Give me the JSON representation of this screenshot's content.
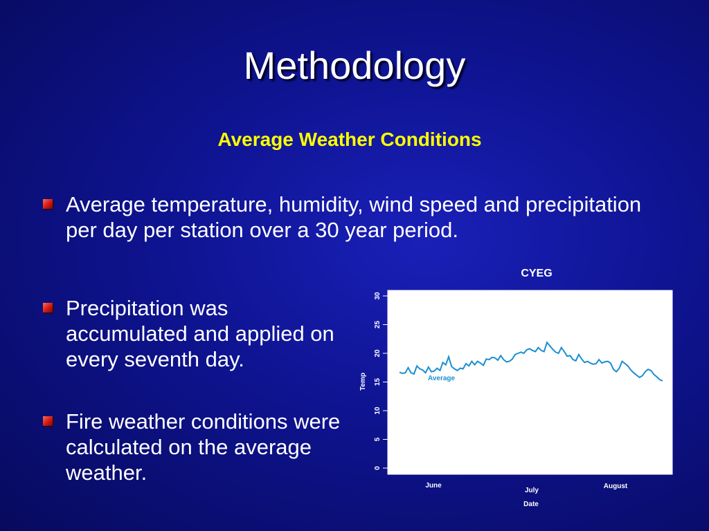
{
  "slide": {
    "title": "Methodology",
    "subtitle": "Average Weather Conditions",
    "bullets": [
      "Average temperature, humidity, wind speed and precipitation per day per station over a 30 year period.",
      "Precipitation was accumulated and applied on every seventh day.",
      "Fire weather conditions were calculated on the average weather."
    ]
  },
  "colors": {
    "background": "#0e138f",
    "title": "#ffffff",
    "subtitle": "#ffff00",
    "bullet_marker": "#d01a10",
    "line": "#1a8fd0"
  },
  "chart_data": {
    "type": "line",
    "title": "CYEG",
    "xlabel": "Date",
    "ylabel": "Temp",
    "ylim": [
      0,
      30
    ],
    "yticks": [
      "0",
      "5",
      "10",
      "15",
      "20",
      "25",
      "30"
    ],
    "xtick_labels": [
      "June",
      "July",
      "August"
    ],
    "x_range": [
      1,
      92
    ],
    "grid": false,
    "series": [
      {
        "name": "Average",
        "x": [
          1,
          2,
          3,
          4,
          5,
          6,
          7,
          8,
          9,
          10,
          11,
          12,
          13,
          14,
          15,
          16,
          17,
          18,
          19,
          20,
          21,
          22,
          23,
          24,
          25,
          26,
          27,
          28,
          29,
          30,
          31,
          32,
          33,
          34,
          35,
          36,
          37,
          38,
          39,
          40,
          41,
          42,
          43,
          44,
          45,
          46,
          47,
          48,
          49,
          50,
          51,
          52,
          53,
          54,
          55,
          56,
          57,
          58,
          59,
          60,
          61,
          62,
          63,
          64,
          65,
          66,
          67,
          68,
          69,
          70,
          71,
          72,
          73,
          74,
          75,
          76,
          77,
          78,
          79,
          80,
          81,
          82,
          83,
          84,
          85,
          86,
          87,
          88,
          89,
          90,
          91,
          92
        ],
        "values": [
          16.7,
          16.5,
          16.6,
          17.5,
          16.6,
          16.4,
          17.8,
          17.3,
          17.1,
          16.6,
          17.6,
          16.8,
          16.9,
          17.4,
          17.0,
          18.4,
          18.0,
          19.4,
          17.7,
          17.3,
          17.0,
          17.4,
          17.3,
          18.2,
          17.8,
          18.6,
          18.0,
          18.6,
          18.3,
          17.9,
          19.0,
          18.9,
          19.3,
          19.2,
          18.8,
          19.6,
          18.9,
          18.5,
          18.6,
          19.0,
          19.8,
          20.0,
          20.2,
          20.0,
          20.6,
          20.8,
          20.5,
          20.3,
          21.0,
          20.5,
          20.3,
          21.9,
          21.3,
          20.7,
          20.2,
          20.0,
          21.0,
          20.3,
          19.5,
          19.6,
          18.9,
          18.7,
          19.8,
          19.0,
          18.4,
          18.6,
          18.3,
          18.1,
          18.2,
          18.9,
          18.3,
          18.5,
          18.6,
          18.3,
          17.2,
          16.8,
          17.4,
          18.6,
          18.2,
          17.8,
          17.1,
          16.6,
          16.2,
          15.8,
          16.1,
          16.8,
          17.2,
          17.0,
          16.3,
          15.9,
          15.4,
          15.2
        ]
      }
    ]
  }
}
